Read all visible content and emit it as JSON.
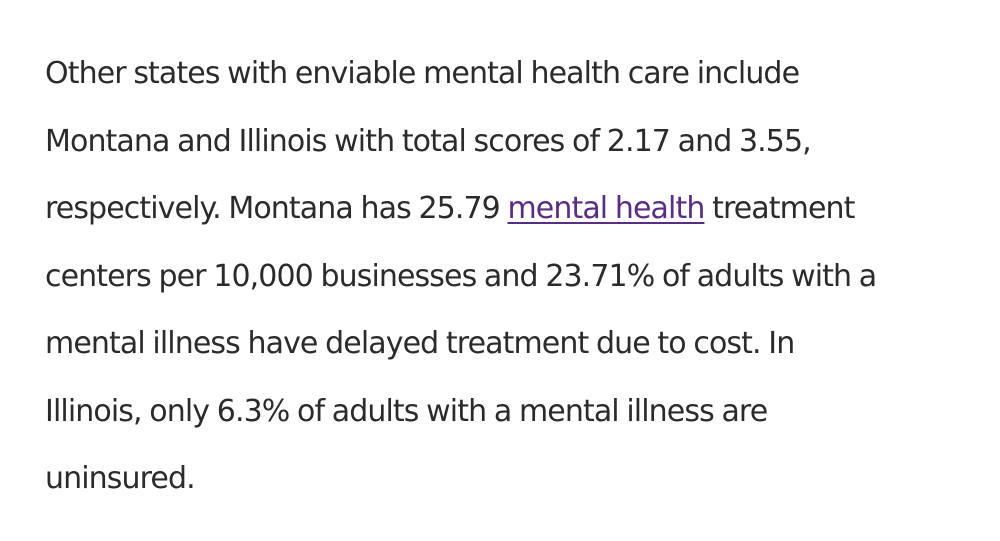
{
  "article": {
    "paragraph": {
      "line1": "Other states with enviable mental health care include",
      "line2": "Montana and Illinois with total scores of 2.17 and 3.55,",
      "line3_before": "respectively. Montana has 25.79 ",
      "line3_link": "mental health",
      "line3_after": " treatment",
      "line4": "centers per 10,000 businesses and 23.71% of adults with a",
      "line5": "mental illness have delayed treatment due to cost. In",
      "line6": "Illinois, only 6.3% of adults with a mental illness are",
      "line7": "uninsured."
    },
    "colors": {
      "text": "#2b2b2b",
      "link": "#5b2d82",
      "background": "#ffffff"
    }
  }
}
